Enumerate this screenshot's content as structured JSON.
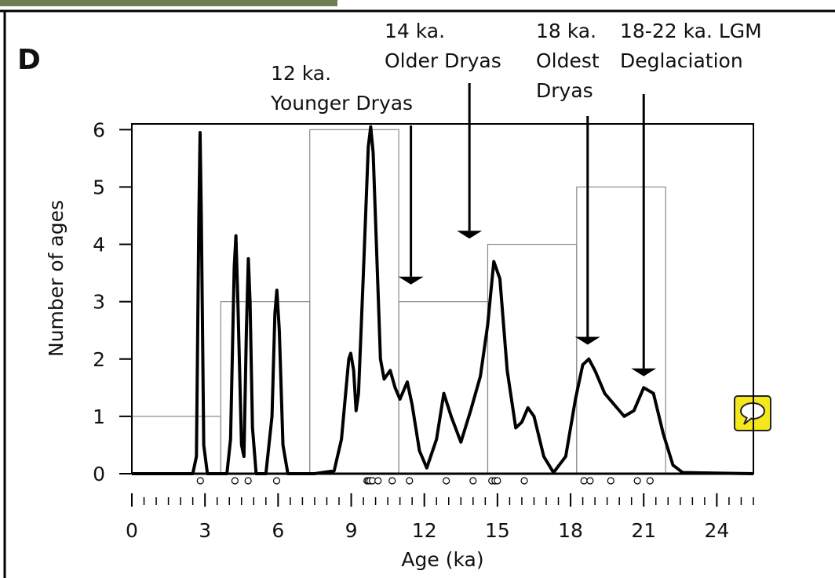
{
  "chart_data": {
    "type": "histogram",
    "panel_label": "D",
    "xlabel": "Age (ka)",
    "ylabel": "Number of ages",
    "xlim": [
      0,
      25.5
    ],
    "ylim": [
      0,
      6.1
    ],
    "xticks": [
      0,
      3,
      6,
      9,
      12,
      15,
      18,
      21,
      24
    ],
    "xminorticks": [
      0.5,
      1,
      1.5,
      2,
      2.5,
      3.5,
      4,
      4.5,
      5,
      5.5,
      6.5,
      7,
      7.5,
      8,
      8.5,
      9.5,
      10,
      10.5,
      11,
      11.5,
      12.5,
      13,
      13.5,
      14,
      14.5,
      15.5,
      16,
      16.5,
      17,
      17.5,
      18.5,
      19,
      19.5,
      20,
      20.5,
      21.5,
      22,
      22.5,
      23,
      23.5,
      24.5,
      25,
      25.5
    ],
    "yticks": [
      0,
      1,
      2,
      3,
      4,
      5,
      6
    ],
    "bins": [
      0,
      3.65,
      7.3,
      10.95,
      14.6,
      18.25,
      21.9
    ],
    "counts": [
      1,
      3,
      6,
      3,
      4,
      5
    ],
    "hist_color": "#8a8a8a",
    "kde": {
      "color": "#000000",
      "x": [
        0,
        2.5,
        2.65,
        2.75,
        2.8,
        2.85,
        2.95,
        3.1,
        3.9,
        4.05,
        4.2,
        4.27,
        4.35,
        4.5,
        4.6,
        4.7,
        4.78,
        4.85,
        4.95,
        5.1,
        5.5,
        5.75,
        5.87,
        5.95,
        6.05,
        6.2,
        6.4,
        7.5,
        8.3,
        8.6,
        8.9,
        8.98,
        9.1,
        9.2,
        9.3,
        9.5,
        9.7,
        9.8,
        9.9,
        10.05,
        10.2,
        10.35,
        10.6,
        10.8,
        11.0,
        11.3,
        11.5,
        11.8,
        12.1,
        12.5,
        12.8,
        13.1,
        13.5,
        13.9,
        14.3,
        14.6,
        14.85,
        15.1,
        15.4,
        15.75,
        16.0,
        16.25,
        16.5,
        16.9,
        17.3,
        17.8,
        18.2,
        18.5,
        18.75,
        19.0,
        19.4,
        19.8,
        20.2,
        20.6,
        21.0,
        21.4,
        21.8,
        22.2,
        22.6,
        25.5
      ],
      "values": [
        0,
        0,
        0.3,
        4.5,
        5.95,
        4.5,
        0.5,
        0,
        0,
        0.6,
        3.6,
        4.15,
        3.0,
        0.5,
        0.3,
        2.5,
        3.75,
        3.0,
        0.8,
        0,
        0,
        1.0,
        2.8,
        3.2,
        2.5,
        0.5,
        0,
        0,
        0.05,
        0.6,
        2.0,
        2.1,
        1.8,
        1.1,
        1.4,
        3.5,
        5.7,
        6.05,
        5.6,
        3.8,
        2.0,
        1.65,
        1.8,
        1.5,
        1.3,
        1.6,
        1.2,
        0.4,
        0.1,
        0.6,
        1.4,
        1.0,
        0.55,
        1.1,
        1.7,
        2.6,
        3.7,
        3.4,
        1.8,
        0.8,
        0.9,
        1.15,
        1.0,
        0.3,
        0.02,
        0.3,
        1.3,
        1.9,
        2.0,
        1.8,
        1.4,
        1.2,
        1.0,
        1.1,
        1.5,
        1.4,
        0.7,
        0.15,
        0.02,
        0
      ]
    },
    "ages": [
      2.81,
      4.23,
      4.77,
      5.94,
      9.65,
      9.7,
      9.77,
      9.87,
      10.1,
      10.68,
      11.39,
      12.9,
      14.0,
      14.77,
      14.9,
      15.0,
      16.1,
      18.55,
      18.8,
      19.65,
      20.74,
      21.26
    ],
    "annotations": [
      {
        "lines": [
          "12 ka.",
          "Younger Dryas"
        ],
        "x": 11.45,
        "y": 3.3
      },
      {
        "lines": [
          "14 ka.",
          "Older Dryas"
        ],
        "x": 13.85,
        "y": 4.1
      },
      {
        "lines": [
          "18 ka.",
          "Oldest",
          "Dryas"
        ],
        "x": 18.7,
        "y": 2.25
      },
      {
        "lines": [
          "18-22 ka. LGM",
          "Deglaciation"
        ],
        "x": 21.0,
        "y": 1.7
      }
    ]
  }
}
